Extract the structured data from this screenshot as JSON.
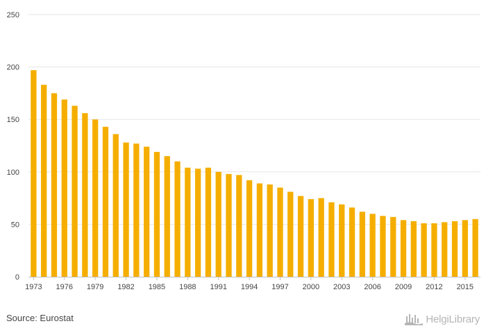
{
  "chart_data": {
    "type": "bar",
    "categories": [
      "1973",
      "1974",
      "1975",
      "1976",
      "1977",
      "1978",
      "1979",
      "1980",
      "1981",
      "1982",
      "1983",
      "1984",
      "1985",
      "1986",
      "1987",
      "1988",
      "1989",
      "1990",
      "1991",
      "1992",
      "1993",
      "1994",
      "1995",
      "1996",
      "1997",
      "1998",
      "1999",
      "2000",
      "2001",
      "2002",
      "2003",
      "2004",
      "2005",
      "2006",
      "2007",
      "2008",
      "2009",
      "2010",
      "2011",
      "2012",
      "2013",
      "2014",
      "2015",
      "2016"
    ],
    "x_tick_labels": [
      "1973",
      "1976",
      "1979",
      "1982",
      "1985",
      "1988",
      "1991",
      "1994",
      "1997",
      "2000",
      "2003",
      "2006",
      "2009",
      "2012",
      "2015"
    ],
    "values": [
      197,
      183,
      175,
      169,
      163,
      156,
      150,
      143,
      136,
      128,
      127,
      124,
      119,
      115,
      110,
      104,
      103,
      104,
      100,
      98,
      97,
      92,
      89,
      88,
      85,
      81,
      77,
      74,
      75,
      71,
      69,
      66,
      62,
      60,
      58,
      57,
      54,
      53,
      51,
      51,
      52,
      53,
      54,
      55
    ],
    "ylim": [
      0,
      250
    ],
    "y_ticks": [
      0,
      50,
      100,
      150,
      200,
      250
    ],
    "grid": true,
    "bar_color": "#f5ae00",
    "title": "",
    "xlabel": "",
    "ylabel": ""
  },
  "footer": {
    "source": "Source: Eurostat",
    "brand": "HelgiLibrary",
    "brand_icon": "helgi-library-logo-icon"
  }
}
